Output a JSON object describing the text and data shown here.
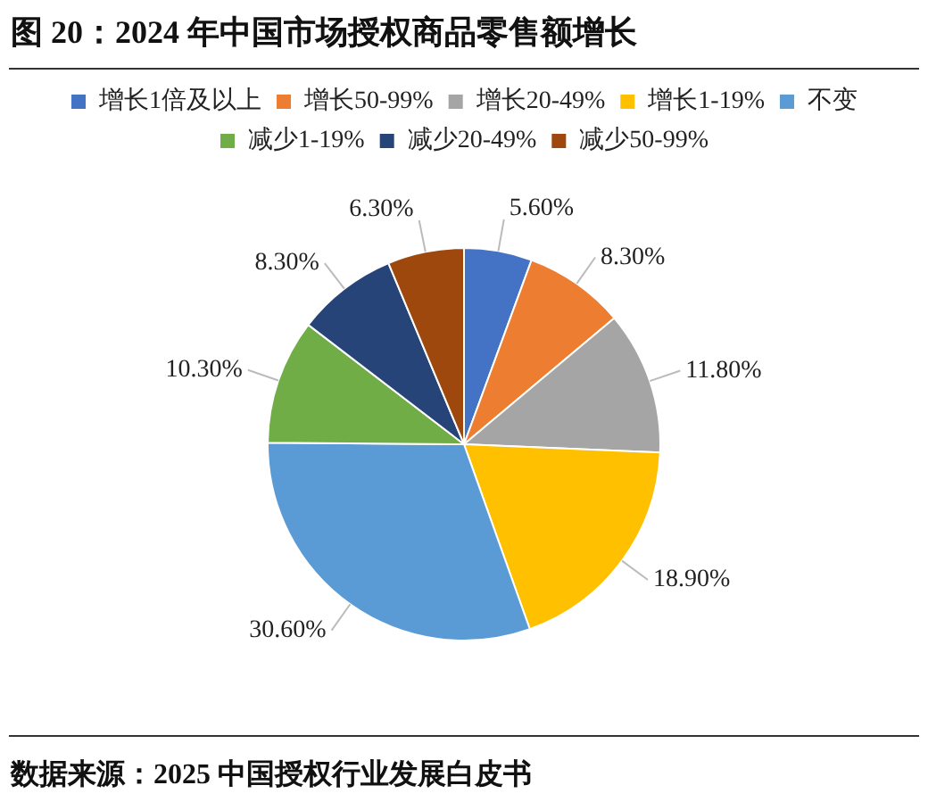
{
  "chart_data": {
    "type": "pie",
    "title": "图 20：2024 年中国市场授权商品零售额增长",
    "categories": [
      "增长1倍及以上",
      "增长50-99%",
      "增长20-49%",
      "增长1-19%",
      "不变",
      "减少1-19%",
      "减少20-49%",
      "减少50-99%"
    ],
    "values": [
      5.6,
      8.3,
      11.8,
      18.9,
      30.6,
      10.3,
      8.3,
      6.3
    ],
    "value_labels": [
      "5.60%",
      "8.30%",
      "11.80%",
      "18.90%",
      "30.60%",
      "10.30%",
      "8.30%",
      "6.30%"
    ],
    "colors": [
      "#4472c4",
      "#ed7d31",
      "#a5a5a5",
      "#ffc000",
      "#5b9bd5",
      "#70ad47",
      "#264478",
      "#9e480e"
    ],
    "legend": "top",
    "annotations": [
      "数据来源：2025 中国授权行业发展白皮书"
    ]
  }
}
